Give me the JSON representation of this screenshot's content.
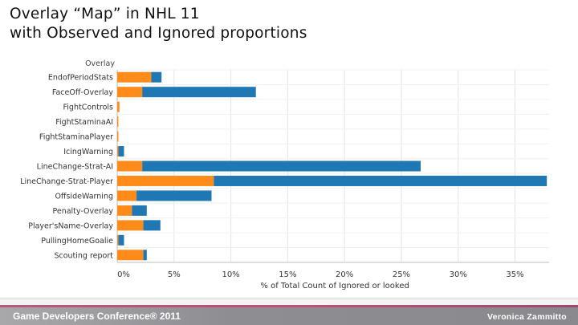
{
  "slide": {
    "title_line1": "Overlay “Map” in NHL 11",
    "title_line2": "with Observed and Ignored proportions"
  },
  "chart_data": {
    "type": "bar",
    "orientation": "horizontal",
    "stacked": true,
    "row_header": "Overlay",
    "categories": [
      "EndofPeriodStats",
      "FaceOff-Overlay",
      "FightControls",
      "FightStaminaAI",
      "FightStaminaPlayer",
      "IcingWarning",
      "LineChange-Strat-AI",
      "LineChange-Strat-Player",
      "OffsideWarning",
      "Penalty-Overlay",
      "Player'sName-Overlay",
      "PullingHomeGoalie",
      "Scouting report"
    ],
    "series": [
      {
        "name": "Observed",
        "color": "#ff8c1a",
        "values": [
          3.0,
          2.2,
          0.2,
          0.1,
          0.1,
          0.1,
          2.2,
          8.5,
          1.7,
          1.3,
          2.3,
          0.1,
          2.3
        ]
      },
      {
        "name": "Ignored",
        "color": "#1f77b4",
        "values": [
          0.9,
          10.0,
          0.0,
          0.0,
          0.0,
          0.5,
          24.5,
          29.3,
          6.6,
          1.3,
          1.5,
          0.5,
          0.3
        ]
      }
    ],
    "xlabel": "% of Total Count of Ignored or looked",
    "x_ticks": [
      "0%",
      "5%",
      "10%",
      "15%",
      "20%",
      "25%",
      "30%",
      "35%"
    ],
    "x_tick_values": [
      0,
      5,
      10,
      15,
      20,
      25,
      30,
      35
    ],
    "xlim": [
      0,
      38
    ],
    "grid": true
  },
  "footer": {
    "left": "Game Developers Conference® 2011",
    "right": "Veronica Zammitto"
  }
}
